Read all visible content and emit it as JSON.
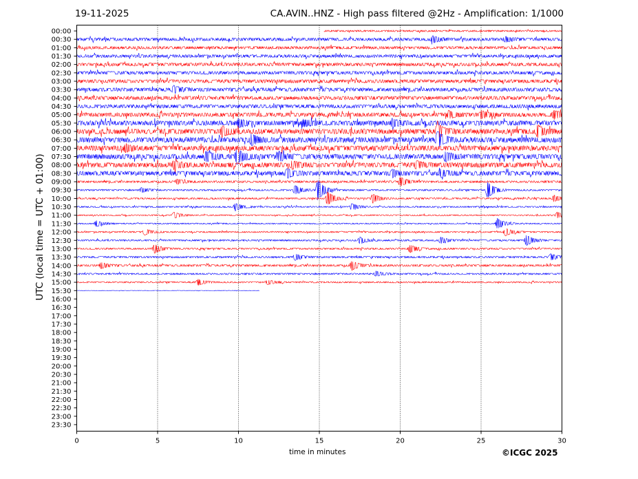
{
  "header": {
    "date": "19-11-2025",
    "title": "CA.AVIN..HNZ - High pass filtered @2Hz - Amplification: 1/1000"
  },
  "footer": {
    "copyright": "©ICGC 2025"
  },
  "chart_data": {
    "type": "line",
    "title": "CA.AVIN..HNZ - High pass filtered @2Hz - Amplification: 1/1000",
    "xlabel": "time in minutes",
    "ylabel": "UTC (local time = UTC + 01:00)",
    "xlim": [
      0,
      30
    ],
    "xticks": [
      0,
      5,
      10,
      15,
      20,
      25,
      30
    ],
    "grid": "vertical dotted lines every 5 minutes",
    "row_labels": [
      "00:00",
      "00:30",
      "01:00",
      "01:30",
      "02:00",
      "02:30",
      "03:00",
      "03:30",
      "04:00",
      "04:30",
      "05:00",
      "05:30",
      "06:00",
      "06:30",
      "07:00",
      "07:30",
      "08:00",
      "08:30",
      "09:00",
      "09:30",
      "10:00",
      "10:30",
      "11:00",
      "11:30",
      "12:00",
      "12:30",
      "13:00",
      "13:30",
      "14:00",
      "14:30",
      "15:00",
      "15:30",
      "16:00",
      "16:30",
      "17:00",
      "17:30",
      "18:00",
      "18:30",
      "19:00",
      "19:30",
      "20:00",
      "20:30",
      "21:00",
      "21:30",
      "22:00",
      "22:30",
      "23:00",
      "23:30"
    ],
    "trace_colors": [
      "#ff0000",
      "#0000ff"
    ],
    "traces": [
      {
        "row": "00:00",
        "start_min": 15.3,
        "end_min": 30,
        "noise": 0.8,
        "events": []
      },
      {
        "row": "00:30",
        "noise": 1.5,
        "events": [
          {
            "t": 22.0,
            "amp": 4
          },
          {
            "t": 26.5,
            "amp": 3
          }
        ]
      },
      {
        "row": "01:00",
        "noise": 1.4,
        "events": []
      },
      {
        "row": "01:30",
        "noise": 1.5,
        "events": []
      },
      {
        "row": "02:00",
        "noise": 1.6,
        "events": []
      },
      {
        "row": "02:30",
        "noise": 1.6,
        "events": []
      },
      {
        "row": "03:00",
        "noise": 1.7,
        "events": []
      },
      {
        "row": "03:30",
        "noise": 1.8,
        "events": [
          {
            "t": 6.0,
            "amp": 4
          }
        ]
      },
      {
        "row": "04:00",
        "noise": 1.8,
        "events": []
      },
      {
        "row": "04:30",
        "noise": 1.8,
        "events": []
      },
      {
        "row": "05:00",
        "noise": 2.0,
        "events": [
          {
            "t": 23.0,
            "amp": 4
          },
          {
            "t": 25.0,
            "amp": 4
          },
          {
            "t": 29.5,
            "amp": 5
          }
        ]
      },
      {
        "row": "05:30",
        "noise": 2.4,
        "events": [
          {
            "t": 10.0,
            "amp": 5
          },
          {
            "t": 14.0,
            "amp": 4
          },
          {
            "t": 19.5,
            "amp": 4
          }
        ]
      },
      {
        "row": "06:00",
        "noise": 2.5,
        "events": [
          {
            "t": 9.0,
            "amp": 6
          },
          {
            "t": 22.3,
            "amp": 9
          },
          {
            "t": 28.5,
            "amp": 7
          }
        ]
      },
      {
        "row": "06:30",
        "noise": 2.6,
        "events": [
          {
            "t": 10.8,
            "amp": 6
          },
          {
            "t": 22.3,
            "amp": 10
          }
        ]
      },
      {
        "row": "07:00",
        "noise": 2.5,
        "events": [
          {
            "t": 3.0,
            "amp": 4
          }
        ]
      },
      {
        "row": "07:30",
        "noise": 2.5,
        "events": [
          {
            "t": 8.0,
            "amp": 6
          },
          {
            "t": 9.9,
            "amp": 9
          },
          {
            "t": 12.5,
            "amp": 5
          },
          {
            "t": 22.8,
            "amp": 5
          }
        ]
      },
      {
        "row": "08:00",
        "noise": 2.4,
        "events": [
          {
            "t": 6.0,
            "amp": 5
          },
          {
            "t": 13.3,
            "amp": 4
          },
          {
            "t": 21.0,
            "amp": 4
          }
        ]
      },
      {
        "row": "08:30",
        "noise": 2.2,
        "events": [
          {
            "t": 13.0,
            "amp": 5
          },
          {
            "t": 19.5,
            "amp": 4
          },
          {
            "t": 22.5,
            "amp": 4
          }
        ]
      },
      {
        "row": "09:00",
        "noise": 1.0,
        "events": [
          {
            "t": 20.0,
            "amp": 6
          },
          {
            "t": 6.2,
            "amp": 3
          }
        ]
      },
      {
        "row": "09:30",
        "noise": 0.8,
        "events": [
          {
            "t": 4.0,
            "amp": 3
          },
          {
            "t": 13.5,
            "amp": 6
          },
          {
            "t": 14.9,
            "amp": 14
          },
          {
            "t": 25.4,
            "amp": 11
          }
        ]
      },
      {
        "row": "10:00",
        "noise": 0.8,
        "events": [
          {
            "t": 15.5,
            "amp": 9
          },
          {
            "t": 18.3,
            "amp": 6
          },
          {
            "t": 29.5,
            "amp": 4
          }
        ]
      },
      {
        "row": "10:30",
        "noise": 0.7,
        "events": [
          {
            "t": 9.8,
            "amp": 5
          },
          {
            "t": 17.0,
            "amp": 4
          }
        ]
      },
      {
        "row": "11:00",
        "noise": 0.6,
        "events": [
          {
            "t": 6.0,
            "amp": 4
          },
          {
            "t": 29.7,
            "amp": 4
          }
        ]
      },
      {
        "row": "11:30",
        "noise": 0.6,
        "events": [
          {
            "t": 1.2,
            "amp": 4
          },
          {
            "t": 26.0,
            "amp": 7
          }
        ]
      },
      {
        "row": "12:00",
        "noise": 0.7,
        "events": [
          {
            "t": 4.2,
            "amp": 4
          },
          {
            "t": 26.5,
            "amp": 5
          }
        ]
      },
      {
        "row": "12:30",
        "noise": 0.8,
        "events": [
          {
            "t": 17.5,
            "amp": 4
          },
          {
            "t": 22.5,
            "amp": 4
          },
          {
            "t": 27.8,
            "amp": 7
          }
        ]
      },
      {
        "row": "13:00",
        "noise": 0.8,
        "events": [
          {
            "t": 4.8,
            "amp": 6
          },
          {
            "t": 20.6,
            "amp": 5
          }
        ]
      },
      {
        "row": "13:30",
        "noise": 0.9,
        "events": [
          {
            "t": 13.5,
            "amp": 4
          },
          {
            "t": 29.3,
            "amp": 4
          }
        ]
      },
      {
        "row": "14:00",
        "noise": 1.0,
        "events": [
          {
            "t": 1.5,
            "amp": 4
          },
          {
            "t": 17.0,
            "amp": 6
          }
        ]
      },
      {
        "row": "14:30",
        "noise": 0.8,
        "events": [
          {
            "t": 18.5,
            "amp": 3
          }
        ]
      },
      {
        "row": "15:00",
        "noise": 0.7,
        "events": [
          {
            "t": 7.5,
            "amp": 4
          },
          {
            "t": 11.8,
            "amp": 3
          }
        ]
      },
      {
        "row": "15:30",
        "start_min": 0,
        "end_min": 11.3,
        "noise": 0.2,
        "events": []
      }
    ]
  }
}
